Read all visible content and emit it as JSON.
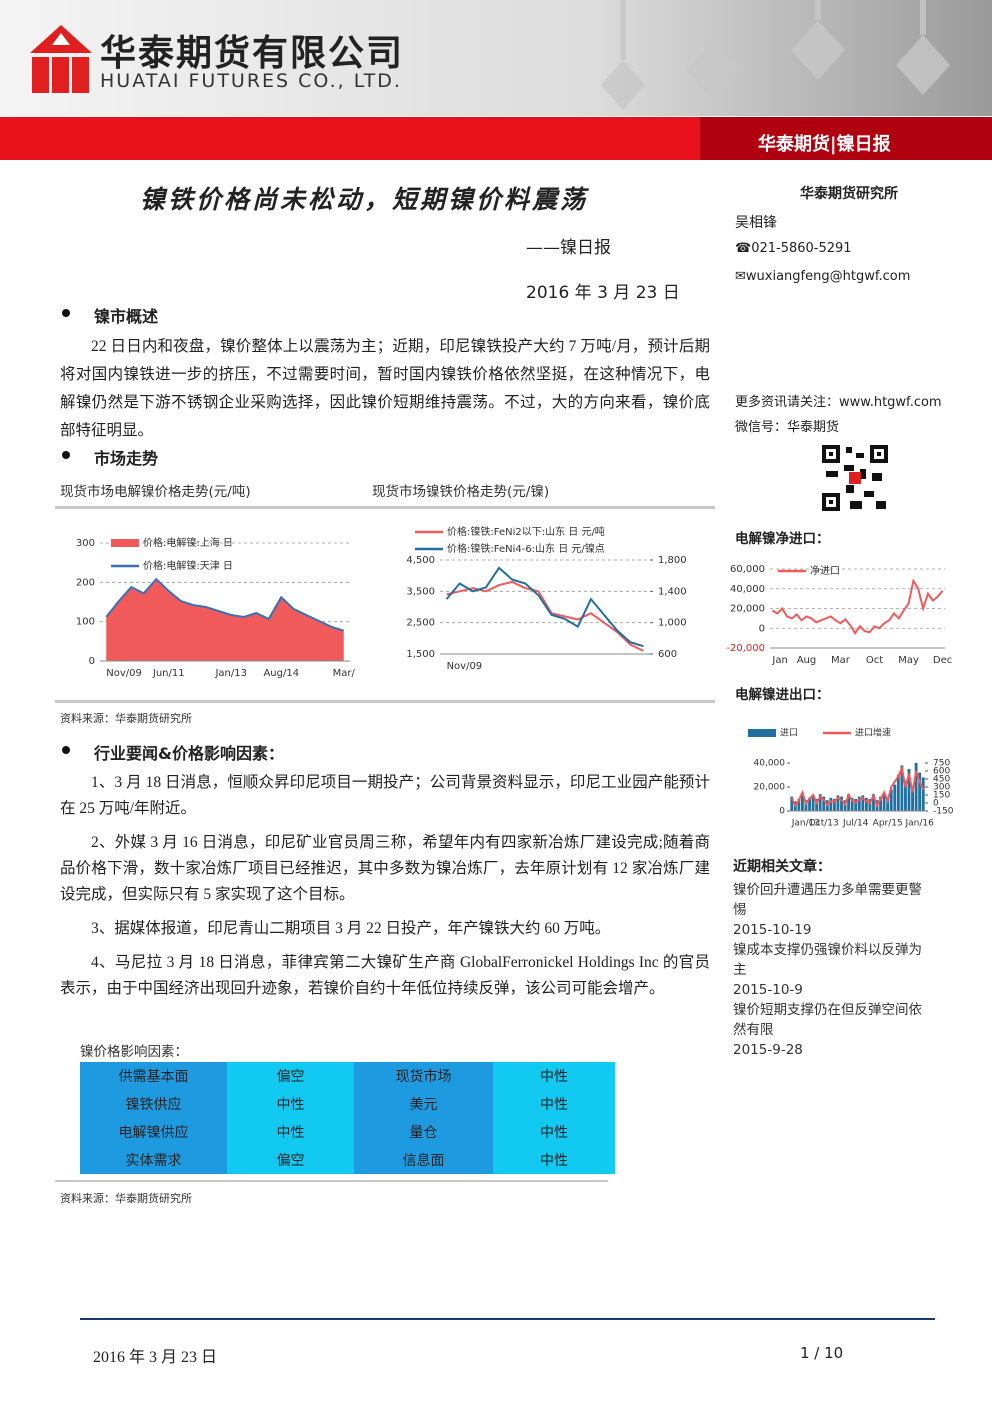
{
  "header": {
    "company_cn": "华泰期货有限公司",
    "company_en": "HUATAI FUTURES CO., LTD.",
    "tag": "华泰期货|镍日报"
  },
  "report": {
    "title": "镍铁价格尚未松动，短期镍价料震荡",
    "subtitle": "——镍日报",
    "date": "2016 年 3 月 23 日"
  },
  "sidebar": {
    "institute": "华泰期货研究所",
    "analyst": "吴相锋",
    "phone": "021-5860-5291",
    "email": "wuxiangfeng@htgwf.com",
    "more": "更多资讯请关注：www.htgwf.com",
    "wechat": "微信号：华泰期货",
    "related_heading": "近期相关文章：",
    "related": [
      {
        "title": "镍价回升遭遇压力多单需要更警惕",
        "date": "2015-10-19"
      },
      {
        "title": "镍成本支撑仍强镍价料以反弹为主",
        "date": "2015-10-9"
      },
      {
        "title": "镍价短期支撑仍在但反弹空间依然有限",
        "date": "2015-9-28"
      }
    ]
  },
  "overview": {
    "heading": "镍市概述",
    "text": "22 日日内和夜盘，镍价整体上以震荡为主；近期，印尼镍铁投产大约 7 万吨/月，预计后期将对国内镍铁进一步的挤压，不过需要时间，暂时国内镍铁价格依然坚挺，在这种情况下，电解镍仍然是下游不锈钢企业采购选择，因此镍价短期维持震荡。不过，大的方向来看，镍价底部特征明显。"
  },
  "market": {
    "heading": "市场走势",
    "source": "资料来源：华泰期货研究所"
  },
  "charts": [
    {
      "type": "area",
      "title": "现货市场电解镍价格走势(元/吨)",
      "categories": [
        "Nov/09",
        null,
        null,
        null,
        null,
        "Jun/11",
        null,
        null,
        null,
        null,
        "Jan/13",
        null,
        null,
        null,
        "Aug/14",
        null,
        null,
        null,
        null,
        "Mar/"
      ],
      "series": [
        {
          "name": "价格:电解镍:上海 日",
          "type": "area",
          "color": "#f05a5a",
          "values": [
            110,
            150,
            185,
            170,
            205,
            175,
            150,
            140,
            135,
            125,
            115,
            110,
            120,
            105,
            160,
            130,
            115,
            100,
            85,
            75
          ]
        },
        {
          "name": "价格:电解镍:天津 日",
          "type": "line",
          "color": "#3a6fb5",
          "values": [
            112,
            152,
            188,
            172,
            208,
            178,
            152,
            142,
            137,
            127,
            117,
            112,
            122,
            107,
            162,
            132,
            117,
            102,
            87,
            77
          ]
        }
      ],
      "ylim": [
        0,
        300
      ],
      "yticks": [
        0,
        100,
        200,
        300
      ],
      "grid": true
    },
    {
      "type": "line",
      "title": "现货市场镍铁价格走势(元/镍)",
      "categories": [
        "Nov/09",
        null,
        null,
        null,
        null,
        null,
        null,
        null,
        null,
        null,
        null,
        null,
        null,
        null,
        null,
        null
      ],
      "series": [
        {
          "name": "价格:镍铁:FeNi2以下:山东 日 元/吨",
          "color": "#f05a5a",
          "values": [
            3400,
            3500,
            3600,
            3500,
            3700,
            3800,
            3600,
            3500,
            2800,
            2700,
            2600,
            2800,
            2500,
            2200,
            1800,
            1600
          ]
        },
        {
          "name": "价格:镍铁:FeNi4-6:山东 日 元/镍点",
          "color": "#1f6f9f",
          "axis": "y2",
          "values": [
            1300,
            1500,
            1400,
            1450,
            1700,
            1550,
            1500,
            1350,
            1100,
            1050,
            950,
            1300,
            1100,
            900,
            750,
            700
          ]
        }
      ],
      "ylim": [
        1500,
        4500
      ],
      "yticks": [
        {
          "value": 1500,
          "label": "1,500"
        },
        {
          "value": 2500,
          "label": "2,500"
        },
        {
          "value": 3500,
          "label": "3,500"
        },
        {
          "value": 4500,
          "label": "4,500"
        }
      ],
      "y2lim": [
        600,
        1800
      ],
      "y2ticks": [
        600,
        {
          "value": 1000,
          "label": "1,000"
        },
        {
          "value": 1400,
          "label": "1,400"
        },
        {
          "value": 1800,
          "label": "1,800"
        }
      ],
      "grid": true
    },
    {
      "type": "line",
      "title": "电解镍净进口：",
      "categories": [
        "Jan",
        null,
        null,
        null,
        null,
        null,
        null,
        "Aug",
        null,
        null,
        null,
        null,
        null,
        null,
        "Mar",
        null,
        null,
        null,
        null,
        null,
        null,
        "Oct",
        null,
        null,
        null,
        null,
        null,
        null,
        "May",
        null,
        null,
        null,
        null,
        null,
        null,
        "Dec"
      ],
      "series": [
        {
          "name": "净进口",
          "color": "#f05a5a",
          "values": [
            18000,
            15000,
            20000,
            12000,
            10000,
            14000,
            8000,
            12000,
            10000,
            6000,
            8000,
            10000,
            12000,
            8000,
            5000,
            9000,
            3000,
            -5000,
            2000,
            -3000,
            -4000,
            2000,
            0,
            5000,
            8000,
            15000,
            10000,
            18000,
            25000,
            48000,
            40000,
            20000,
            35000,
            28000,
            32000,
            38000
          ]
        }
      ],
      "ylim": [
        -20000,
        60000
      ],
      "yticks": [
        {
          "value": -20000,
          "label": "-20,000"
        },
        0,
        {
          "value": 20000,
          "label": "20,000"
        },
        {
          "value": 40000,
          "label": "40,000"
        },
        {
          "value": 60000,
          "label": "60,000"
        }
      ],
      "grid": true
    },
    {
      "type": "bar",
      "title": "电解镍进出口：",
      "categories": [
        "Jan/13",
        null,
        null,
        null,
        null,
        null,
        null,
        null,
        null,
        "Oct/13",
        null,
        null,
        null,
        null,
        null,
        null,
        null,
        null,
        "Jul/14",
        null,
        null,
        null,
        null,
        null,
        null,
        null,
        null,
        "Apr/15",
        null,
        null,
        null,
        null,
        null,
        null,
        null,
        null,
        "Jan/16",
        null
      ],
      "series": [
        {
          "name": "进口",
          "type": "bar",
          "color": "#1f6f9f",
          "values": [
            12000,
            8000,
            10000,
            15000,
            9000,
            11000,
            13000,
            10000,
            14000,
            12000,
            9000,
            11000,
            10000,
            13000,
            12000,
            9000,
            14000,
            11000,
            10000,
            12000,
            13000,
            11000,
            10000,
            14000,
            9000,
            12000,
            15000,
            11000,
            18000,
            22000,
            30000,
            38000,
            25000,
            35000,
            20000,
            40000,
            32000,
            28000
          ]
        },
        {
          "name": "进口增速",
          "type": "line",
          "color": "#f05a5a",
          "axis": "y2",
          "values": [
            100,
            -50,
            50,
            200,
            -20,
            80,
            150,
            0,
            120,
            60,
            -40,
            30,
            20,
            100,
            50,
            -30,
            150,
            40,
            10,
            60,
            90,
            30,
            0,
            140,
            -50,
            70,
            200,
            40,
            300,
            400,
            500,
            650,
            300,
            550,
            200,
            600,
            400,
            250
          ]
        }
      ],
      "ylim": [
        0,
        40000
      ],
      "yticks": [
        0,
        {
          "value": 20000,
          "label": "20,000"
        },
        {
          "value": 40000,
          "label": "40,000"
        }
      ],
      "y2lim": [
        -150,
        750
      ],
      "y2ticks": [
        -150,
        0,
        150,
        300,
        450,
        600,
        750
      ],
      "grid": false
    }
  ],
  "news": {
    "heading": "行业要闻&价格影响因素：",
    "items": [
      "1、3 月 18 日消息，恒顺众昇印尼项目一期投产；公司背景资料显示，印尼工业园产能预计在 25 万吨/年附近。",
      "2、外媒 3 月 16 日消息，印尼矿业官员周三称，希望年内有四家新冶炼厂建设完成;随着商品价格下滑，数十家冶炼厂项目已经推迟，其中多数为镍冶炼厂，去年原计划有 12 家冶炼厂建设完成，但实际只有 5 家实现了这个目标。",
      "3、据媒体报道，印尼青山二期项目 3 月 22 日投产，年产镍铁大约 60 万吨。",
      "4、马尼拉 3 月 18 日消息，菲律宾第二大镍矿生产商 GlobalFerronickel Holdings Inc 的官员表示，由于中国经济出现回升迹象，若镍价自约十年低位持续反弹，该公司可能会增产。"
    ]
  },
  "factors": {
    "caption": "镍价格影响因素：",
    "rows": [
      [
        "供需基本面",
        "偏空",
        "现货市场",
        "中性"
      ],
      [
        "镍铁供应",
        "中性",
        "美元",
        "中性"
      ],
      [
        "电解镍供应",
        "中性",
        "量仓",
        "中性"
      ],
      [
        "实体需求",
        "偏空",
        "信息面",
        "中性"
      ]
    ],
    "source": "资料来源：华泰期货研究所"
  },
  "footer": {
    "date": "2016 年 3 月 23 日",
    "page": "1 / 10"
  }
}
